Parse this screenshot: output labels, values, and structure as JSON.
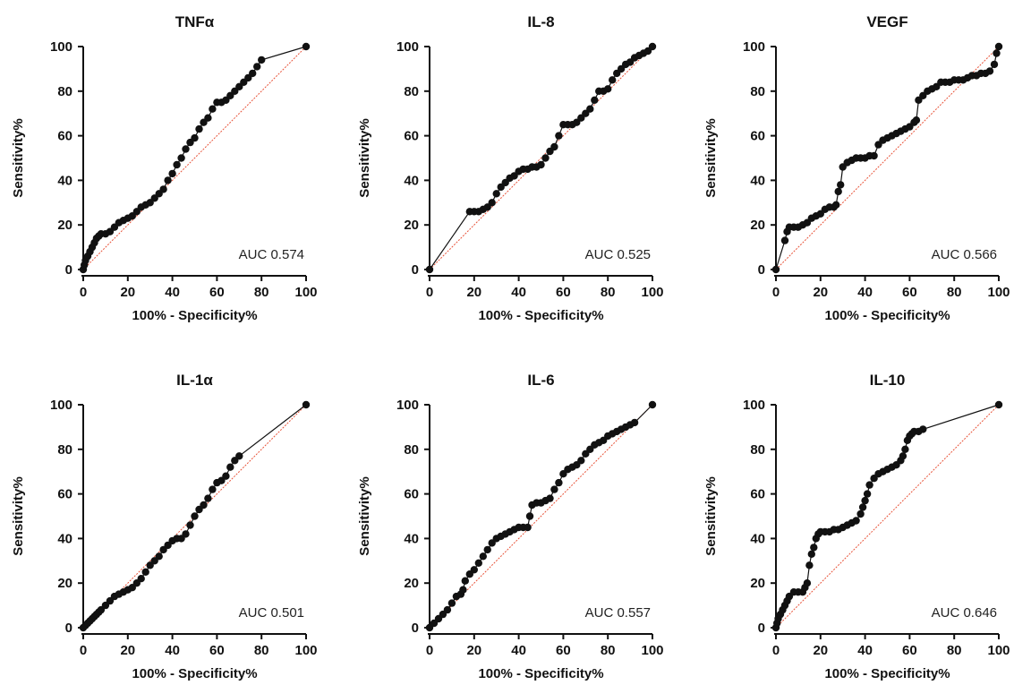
{
  "chart_data": [
    {
      "type": "line",
      "title": "TNFα",
      "xlabel": "100% - Specificity%",
      "ylabel": "Sensitivity%",
      "xlim": [
        0,
        100
      ],
      "ylim": [
        0,
        100
      ],
      "xticks": [
        "0",
        "20",
        "40",
        "60",
        "80",
        "100"
      ],
      "yticks": [
        "0",
        "20",
        "40",
        "60",
        "80",
        "100"
      ],
      "annotation": "AUC 0.574",
      "auc": 0.574,
      "grid": false,
      "reference_line": "diagonal",
      "series": [
        {
          "x": [
            0,
            0.5,
            1,
            2,
            3,
            4,
            5,
            6,
            7,
            8,
            10,
            12,
            14,
            16,
            18,
            20,
            22,
            24,
            26,
            28,
            30,
            32,
            34,
            36,
            38,
            40,
            42,
            44,
            46,
            48,
            50,
            52,
            54,
            56,
            58,
            60,
            62,
            64,
            66,
            68,
            70,
            72,
            74,
            76,
            78,
            80,
            100
          ],
          "y": [
            0,
            2,
            4,
            6,
            8,
            10,
            12,
            14,
            15,
            16,
            16,
            17,
            19,
            21,
            22,
            23,
            24,
            26,
            28,
            29,
            30,
            32,
            34,
            36,
            40,
            43,
            47,
            50,
            54,
            57,
            59,
            63,
            66,
            68,
            72,
            75,
            75,
            76,
            78,
            80,
            82,
            84,
            86,
            88,
            91,
            94,
            100
          ]
        }
      ]
    },
    {
      "type": "line",
      "title": "IL-8",
      "xlabel": "100% - Specificity%",
      "ylabel": "Sensitivity%",
      "xlim": [
        0,
        100
      ],
      "ylim": [
        0,
        100
      ],
      "xticks": [
        "0",
        "20",
        "40",
        "60",
        "80",
        "100"
      ],
      "yticks": [
        "0",
        "20",
        "40",
        "60",
        "80",
        "100"
      ],
      "annotation": "AUC 0.525",
      "auc": 0.525,
      "grid": false,
      "reference_line": "diagonal",
      "series": [
        {
          "x": [
            0,
            18,
            20,
            22,
            24,
            26,
            28,
            30,
            32,
            34,
            36,
            38,
            40,
            42,
            44,
            46,
            48,
            50,
            52,
            54,
            56,
            58,
            60,
            62,
            64,
            66,
            68,
            70,
            72,
            74,
            76,
            78,
            80,
            82,
            84,
            86,
            88,
            90,
            92,
            94,
            96,
            98,
            100
          ],
          "y": [
            0,
            26,
            26,
            26,
            27,
            28,
            30,
            34,
            37,
            39,
            41,
            42,
            44,
            45,
            45,
            46,
            46,
            47,
            50,
            53,
            55,
            60,
            65,
            65,
            65,
            66,
            68,
            70,
            72,
            76,
            80,
            80,
            81,
            85,
            88,
            90,
            92,
            93,
            95,
            96,
            97,
            98,
            100
          ]
        }
      ]
    },
    {
      "type": "line",
      "title": "VEGF",
      "xlabel": "100% - Specificity%",
      "ylabel": "Sensitivity%",
      "xlim": [
        0,
        100
      ],
      "ylim": [
        0,
        100
      ],
      "xticks": [
        "0",
        "20",
        "40",
        "60",
        "80",
        "100"
      ],
      "yticks": [
        "0",
        "20",
        "40",
        "60",
        "80",
        "100"
      ],
      "annotation": "AUC 0.566",
      "auc": 0.566,
      "grid": false,
      "reference_line": "diagonal",
      "series": [
        {
          "x": [
            0,
            4,
            5,
            6,
            8,
            10,
            12,
            14,
            16,
            18,
            20,
            22,
            24,
            26,
            27,
            28,
            29,
            30,
            32,
            34,
            36,
            38,
            40,
            42,
            44,
            46,
            48,
            50,
            52,
            54,
            56,
            58,
            60,
            62,
            63,
            64,
            66,
            68,
            70,
            72,
            74,
            76,
            78,
            80,
            82,
            84,
            86,
            88,
            90,
            92,
            94,
            96,
            98,
            99,
            100
          ],
          "y": [
            0,
            13,
            17,
            19,
            19,
            19,
            20,
            21,
            23,
            24,
            25,
            27,
            28,
            28,
            29,
            35,
            38,
            46,
            48,
            49,
            50,
            50,
            50,
            51,
            51,
            56,
            58,
            59,
            60,
            61,
            62,
            63,
            64,
            66,
            67,
            76,
            78,
            80,
            81,
            82,
            84,
            84,
            84,
            85,
            85,
            85,
            86,
            87,
            87,
            88,
            88,
            89,
            92,
            97,
            100
          ]
        }
      ]
    },
    {
      "type": "line",
      "title": "IL-1α",
      "xlabel": "100% - Specificity%",
      "ylabel": "Sensitivity%",
      "xlim": [
        0,
        100
      ],
      "ylim": [
        0,
        100
      ],
      "xticks": [
        "0",
        "20",
        "40",
        "60",
        "80",
        "100"
      ],
      "yticks": [
        "0",
        "20",
        "40",
        "60",
        "80",
        "100"
      ],
      "annotation": "AUC 0.501",
      "auc": 0.501,
      "grid": false,
      "reference_line": "diagonal",
      "series": [
        {
          "x": [
            0,
            1,
            2,
            3,
            4,
            5,
            6,
            7,
            8,
            10,
            12,
            14,
            16,
            18,
            20,
            22,
            24,
            26,
            28,
            30,
            32,
            34,
            36,
            38,
            40,
            42,
            44,
            46,
            48,
            50,
            52,
            54,
            56,
            58,
            60,
            62,
            64,
            66,
            68,
            70,
            100
          ],
          "y": [
            0,
            1,
            2,
            3,
            4,
            5,
            6,
            7,
            8,
            10,
            12,
            14,
            15,
            16,
            17,
            18,
            20,
            22,
            25,
            28,
            30,
            32,
            35,
            37,
            39,
            40,
            40,
            42,
            46,
            50,
            53,
            55,
            58,
            62,
            65,
            66,
            68,
            72,
            75,
            77,
            100
          ]
        }
      ]
    },
    {
      "type": "line",
      "title": "IL-6",
      "xlabel": "100% - Specificity%",
      "ylabel": "Sensitivity%",
      "xlim": [
        0,
        100
      ],
      "ylim": [
        0,
        100
      ],
      "xticks": [
        "0",
        "20",
        "40",
        "60",
        "80",
        "100"
      ],
      "yticks": [
        "0",
        "20",
        "40",
        "60",
        "80",
        "100"
      ],
      "annotation": "AUC 0.557",
      "auc": 0.557,
      "grid": false,
      "reference_line": "diagonal",
      "series": [
        {
          "x": [
            0,
            2,
            4,
            6,
            8,
            10,
            12,
            14,
            15,
            16,
            18,
            20,
            22,
            24,
            26,
            28,
            30,
            32,
            34,
            36,
            38,
            40,
            42,
            44,
            45,
            46,
            48,
            50,
            52,
            54,
            56,
            58,
            60,
            62,
            64,
            66,
            68,
            70,
            72,
            74,
            76,
            78,
            80,
            82,
            84,
            86,
            88,
            90,
            92,
            100
          ],
          "y": [
            0,
            2,
            4,
            6,
            8,
            11,
            14,
            15,
            17,
            21,
            24,
            26,
            29,
            32,
            35,
            38,
            40,
            41,
            42,
            43,
            44,
            45,
            45,
            45,
            50,
            55,
            56,
            56,
            57,
            58,
            62,
            65,
            69,
            71,
            72,
            73,
            75,
            78,
            80,
            82,
            83,
            84,
            86,
            87,
            88,
            89,
            90,
            91,
            92,
            100
          ]
        }
      ]
    },
    {
      "type": "line",
      "title": "IL-10",
      "xlabel": "100% - Specificity%",
      "ylabel": "Sensitivity%",
      "xlim": [
        0,
        100
      ],
      "ylim": [
        0,
        100
      ],
      "xticks": [
        "0",
        "20",
        "40",
        "60",
        "80",
        "100"
      ],
      "yticks": [
        "0",
        "20",
        "40",
        "60",
        "80",
        "100"
      ],
      "annotation": "AUC 0.646",
      "auc": 0.646,
      "grid": false,
      "reference_line": "diagonal",
      "series": [
        {
          "x": [
            0,
            0.5,
            1,
            2,
            3,
            4,
            5,
            6,
            8,
            10,
            12,
            13,
            14,
            15,
            16,
            17,
            18,
            19,
            20,
            22,
            24,
            26,
            28,
            30,
            32,
            34,
            36,
            38,
            39,
            40,
            41,
            42,
            44,
            46,
            48,
            50,
            52,
            54,
            56,
            57,
            58,
            59,
            60,
            61,
            62,
            64,
            66,
            100
          ],
          "y": [
            0,
            2,
            4,
            6,
            8,
            10,
            12,
            14,
            16,
            16,
            16,
            18,
            20,
            28,
            33,
            36,
            40,
            42,
            43,
            43,
            43,
            44,
            44,
            45,
            46,
            47,
            48,
            51,
            54,
            57,
            60,
            64,
            67,
            69,
            70,
            71,
            72,
            73,
            75,
            77,
            80,
            84,
            86,
            87,
            88,
            88,
            89,
            100
          ]
        }
      ]
    }
  ]
}
